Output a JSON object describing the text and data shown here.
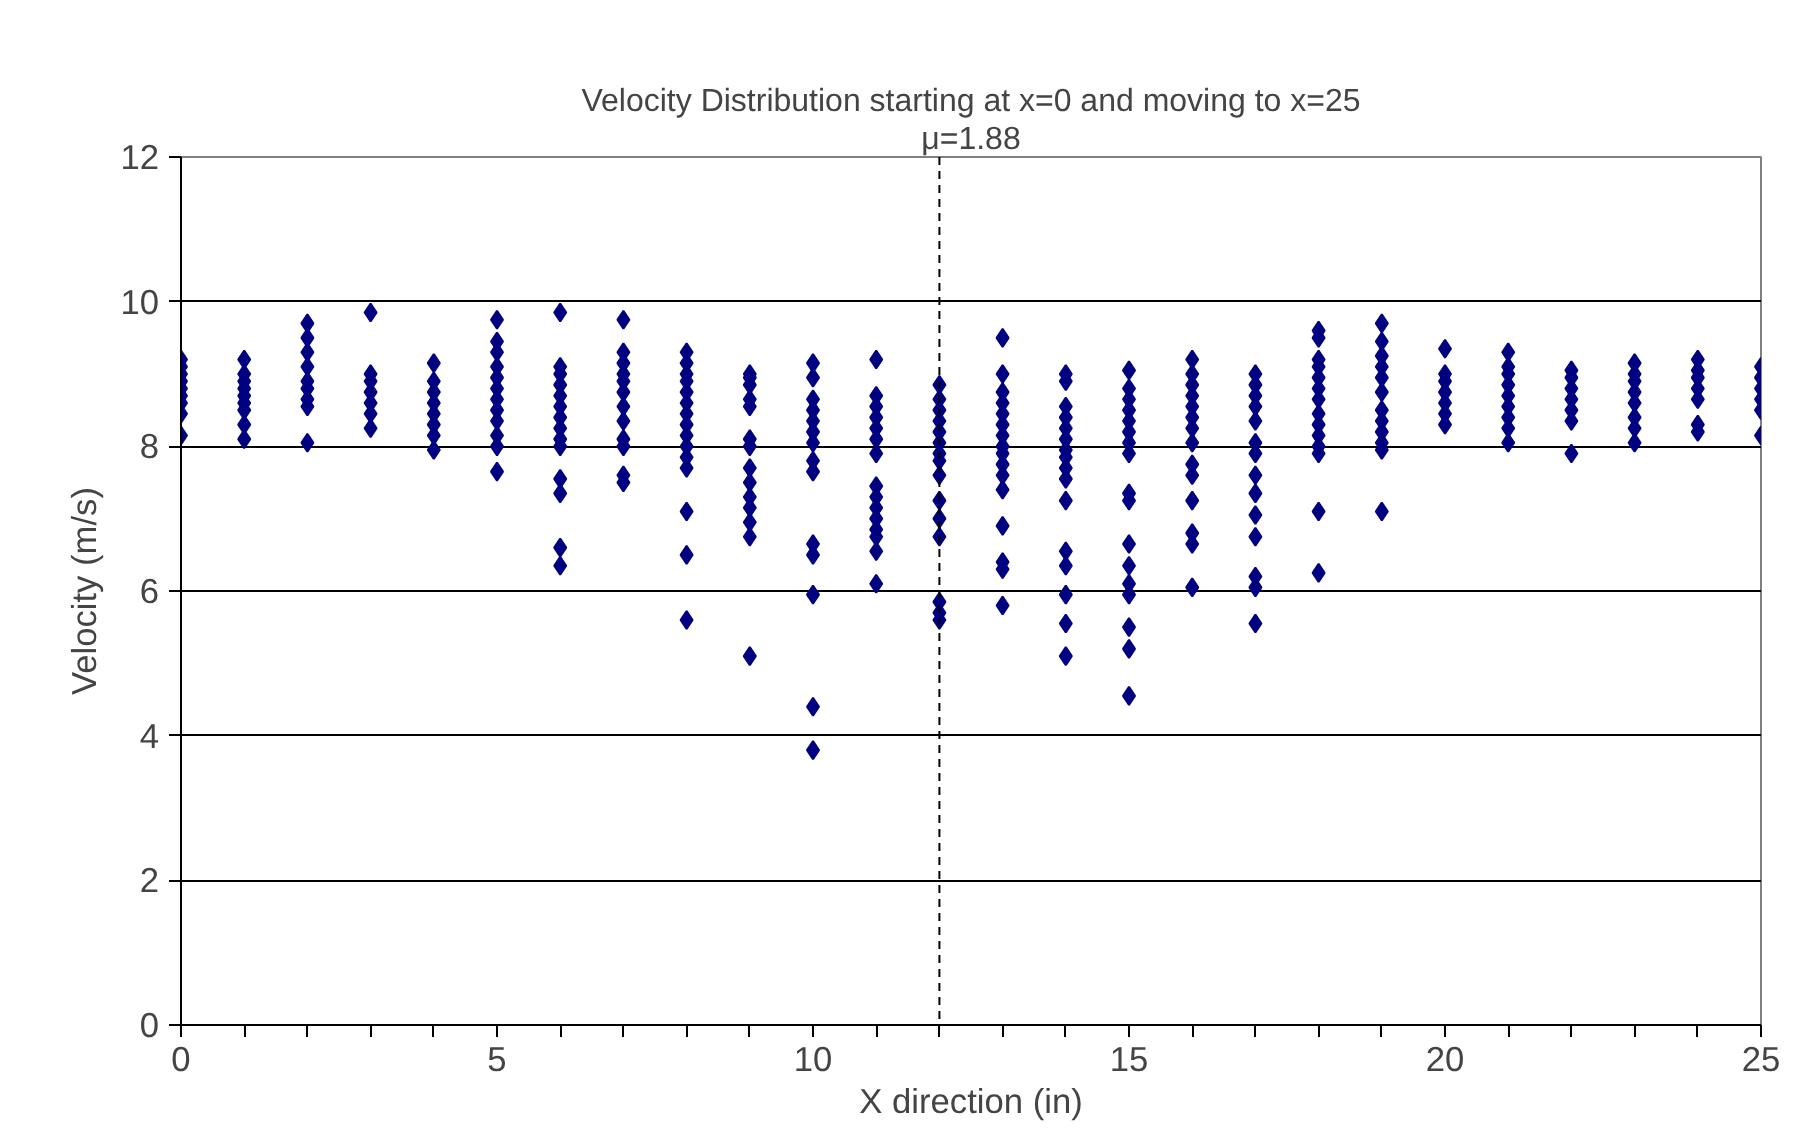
{
  "chart_data": {
    "type": "scatter",
    "title": "Velocity Distribution starting at x=0 and moving to x=25",
    "xlabel": "X direction (in)",
    "ylabel": "Velocity (m/s)",
    "xlim": [
      0,
      25
    ],
    "ylim": [
      0,
      12
    ],
    "xticks": [
      0,
      {
        "value": 1,
        "label": null
      },
      {
        "value": 2,
        "label": null
      },
      {
        "value": 3,
        "label": null
      },
      {
        "value": 4,
        "label": null
      },
      5,
      {
        "value": 6,
        "label": null
      },
      {
        "value": 7,
        "label": null
      },
      {
        "value": 8,
        "label": null
      },
      {
        "value": 9,
        "label": null
      },
      10,
      {
        "value": 11,
        "label": null
      },
      {
        "value": 12,
        "label": null
      },
      {
        "value": 13,
        "label": null
      },
      {
        "value": 14,
        "label": null
      },
      15,
      {
        "value": 16,
        "label": null
      },
      {
        "value": 17,
        "label": null
      },
      {
        "value": 18,
        "label": null
      },
      {
        "value": 19,
        "label": null
      },
      20,
      {
        "value": 21,
        "label": null
      },
      {
        "value": 22,
        "label": null
      },
      {
        "value": 23,
        "label": null
      },
      {
        "value": 24,
        "label": null
      },
      25
    ],
    "yticks": [
      0,
      2,
      4,
      6,
      8,
      10,
      12
    ],
    "grid": "y",
    "marker": "diamond",
    "ref_lines": [
      {
        "axis": "x",
        "value": 12,
        "color": "#000000",
        "line_style": "dashed"
      }
    ],
    "annotations": [
      "μ=1.88"
    ],
    "series": [
      {
        "color": "#000080",
        "x": [
          0,
          0,
          0,
          0,
          0,
          0,
          0,
          0,
          0,
          1,
          1,
          1,
          1,
          1,
          1,
          1,
          1,
          1,
          2,
          2,
          2,
          2,
          2,
          2,
          2,
          2,
          2,
          3,
          3,
          3,
          3,
          3,
          3,
          3,
          4,
          4,
          4,
          4,
          4,
          4,
          4,
          4,
          5,
          5,
          5,
          5,
          5,
          5,
          5,
          5,
          5,
          5,
          5,
          5,
          6,
          6,
          6,
          6,
          6,
          6,
          6,
          6,
          6,
          6,
          6,
          6,
          6,
          6,
          7,
          7,
          7,
          7,
          7,
          7,
          7,
          7,
          7,
          7,
          7,
          7,
          8,
          8,
          8,
          8,
          8,
          8,
          8,
          8,
          8,
          8,
          8,
          8,
          8,
          8,
          8,
          9,
          9,
          9,
          9,
          9,
          9,
          9,
          9,
          9,
          9,
          9,
          9,
          9,
          9,
          10,
          10,
          10,
          10,
          10,
          10,
          10,
          10,
          10,
          10,
          10,
          10,
          10,
          10,
          11,
          11,
          11,
          11,
          11,
          11,
          11,
          11,
          11,
          11,
          11,
          11,
          11,
          11,
          11,
          12,
          12,
          12,
          12,
          12,
          12,
          12,
          12,
          12,
          12,
          12,
          12,
          12,
          12,
          12,
          13,
          13,
          13,
          13,
          13,
          13,
          13,
          13,
          13,
          13,
          13,
          13,
          13,
          13,
          13,
          13,
          14,
          14,
          14,
          14,
          14,
          14,
          14,
          14,
          14,
          14,
          14,
          14,
          14,
          14,
          14,
          14,
          15,
          15,
          15,
          15,
          15,
          15,
          15,
          15,
          15,
          15,
          15,
          15,
          15,
          15,
          15,
          15,
          15,
          16,
          16,
          16,
          16,
          16,
          16,
          16,
          16,
          16,
          16,
          16,
          16,
          16,
          16,
          17,
          17,
          17,
          17,
          17,
          17,
          17,
          17,
          17,
          17,
          17,
          17,
          17,
          17,
          18,
          18,
          18,
          18,
          18,
          18,
          18,
          18,
          18,
          18,
          18,
          18,
          18,
          18,
          19,
          19,
          19,
          19,
          19,
          19,
          19,
          19,
          19,
          19,
          19,
          19,
          20,
          20,
          20,
          20,
          20,
          20,
          20,
          21,
          21,
          21,
          21,
          21,
          21,
          21,
          21,
          21,
          22,
          22,
          22,
          22,
          22,
          22,
          22,
          23,
          23,
          23,
          23,
          23,
          23,
          23,
          23,
          24,
          24,
          24,
          24,
          24,
          24,
          24,
          25,
          25,
          25,
          25,
          25,
          25
        ],
        "values": [
          9.2,
          9.1,
          9.0,
          8.9,
          8.8,
          8.7,
          8.6,
          8.45,
          8.15,
          9.2,
          9.0,
          8.9,
          8.8,
          8.7,
          8.6,
          8.5,
          8.3,
          8.1,
          9.7,
          9.5,
          9.3,
          9.1,
          8.9,
          8.8,
          8.65,
          8.55,
          8.05,
          9.85,
          9.0,
          8.9,
          8.75,
          8.6,
          8.45,
          8.25,
          9.15,
          8.9,
          8.75,
          8.6,
          8.45,
          8.3,
          8.15,
          7.95,
          9.75,
          9.45,
          9.3,
          9.1,
          8.95,
          8.8,
          8.65,
          8.5,
          8.35,
          8.15,
          8.0,
          7.65,
          9.85,
          9.1,
          9.0,
          8.85,
          8.7,
          8.55,
          8.4,
          8.25,
          8.1,
          8.0,
          7.55,
          7.35,
          6.6,
          6.35,
          9.75,
          9.3,
          9.15,
          9.0,
          8.9,
          8.75,
          8.55,
          8.35,
          8.1,
          8.0,
          7.6,
          7.5,
          9.3,
          9.15,
          9.0,
          8.9,
          8.75,
          8.6,
          8.45,
          8.3,
          8.15,
          8.0,
          7.85,
          7.7,
          7.1,
          6.5,
          5.6,
          9.0,
          8.95,
          8.85,
          8.65,
          8.55,
          8.1,
          8.0,
          7.7,
          7.5,
          7.3,
          7.15,
          6.95,
          6.75,
          5.1,
          9.15,
          8.95,
          8.65,
          8.5,
          8.35,
          8.2,
          8.05,
          7.8,
          7.65,
          6.65,
          6.5,
          5.95,
          4.4,
          3.8,
          9.2,
          8.7,
          8.55,
          8.4,
          8.25,
          8.1,
          7.9,
          7.45,
          7.3,
          7.15,
          7.0,
          6.85,
          6.75,
          6.55,
          6.1,
          8.85,
          8.65,
          8.5,
          8.35,
          8.2,
          8.05,
          7.9,
          7.8,
          7.6,
          7.25,
          7.0,
          6.75,
          5.85,
          5.7,
          5.6,
          9.5,
          9.0,
          8.75,
          8.6,
          8.45,
          8.3,
          8.15,
          8.0,
          7.9,
          7.75,
          7.6,
          7.4,
          6.9,
          6.4,
          6.3,
          5.8,
          9.0,
          8.9,
          8.55,
          8.4,
          8.25,
          8.1,
          7.95,
          7.85,
          7.7,
          7.55,
          7.25,
          6.55,
          6.35,
          5.95,
          5.55,
          5.1,
          9.05,
          8.8,
          8.65,
          8.5,
          8.35,
          8.2,
          8.05,
          7.9,
          7.35,
          7.25,
          6.65,
          6.35,
          6.1,
          5.95,
          5.5,
          5.2,
          4.55,
          9.2,
          9.0,
          8.85,
          8.7,
          8.55,
          8.4,
          8.25,
          8.05,
          7.75,
          7.6,
          7.25,
          6.8,
          6.65,
          6.05,
          9.0,
          8.85,
          8.7,
          8.55,
          8.35,
          8.05,
          7.9,
          7.6,
          7.35,
          7.05,
          6.75,
          6.2,
          6.05,
          5.55,
          9.6,
          9.5,
          9.2,
          9.1,
          8.95,
          8.8,
          8.65,
          8.45,
          8.3,
          8.15,
          8.0,
          7.9,
          7.1,
          6.25,
          9.7,
          9.45,
          9.25,
          9.1,
          8.95,
          8.75,
          8.5,
          8.35,
          8.2,
          8.05,
          7.95,
          7.1,
          9.35,
          9.0,
          8.9,
          8.75,
          8.6,
          8.45,
          8.3,
          9.3,
          9.1,
          9.0,
          8.85,
          8.7,
          8.55,
          8.4,
          8.25,
          8.05,
          9.05,
          8.95,
          8.8,
          8.65,
          8.5,
          8.35,
          7.9,
          9.15,
          9.0,
          8.9,
          8.75,
          8.6,
          8.4,
          8.25,
          8.05,
          9.2,
          9.05,
          8.95,
          8.8,
          8.65,
          8.3,
          8.2,
          9.1,
          8.95,
          8.8,
          8.65,
          8.5,
          8.15
        ]
      }
    ]
  }
}
